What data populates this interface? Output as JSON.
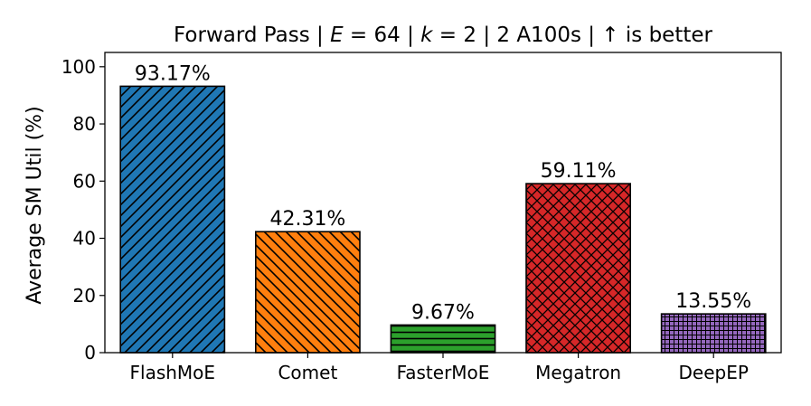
{
  "chart_data": {
    "type": "bar",
    "title": "Forward Pass | E = 64 | k = 2 | 2 A100s | ↑ is better",
    "title_parts": {
      "prefix": "Forward Pass | ",
      "e_var": "E",
      "e_val": " = 64 | ",
      "k_var": "k",
      "k_val": " = 2 | 2 A100s | ↑  is better"
    },
    "xlabel": "",
    "ylabel": "Average SM Util (%)",
    "ylim": [
      0,
      105
    ],
    "yticks": [
      0,
      20,
      40,
      60,
      80,
      100
    ],
    "categories": [
      "FlashMoE",
      "Comet",
      "FasterMoE",
      "Megatron",
      "DeepEP"
    ],
    "values": [
      93.17,
      42.31,
      9.67,
      59.11,
      13.55
    ],
    "value_labels": [
      "93.17%",
      "42.31%",
      "9.67%",
      "59.11%",
      "13.55%"
    ],
    "colors": [
      "#1f77b4",
      "#ff7f0e",
      "#2ca02c",
      "#d62728",
      "#9467bd"
    ],
    "hatches": [
      "diagonal",
      "anti-diagonal",
      "horizontal",
      "cross-diagonal",
      "grid"
    ],
    "grid": false
  }
}
